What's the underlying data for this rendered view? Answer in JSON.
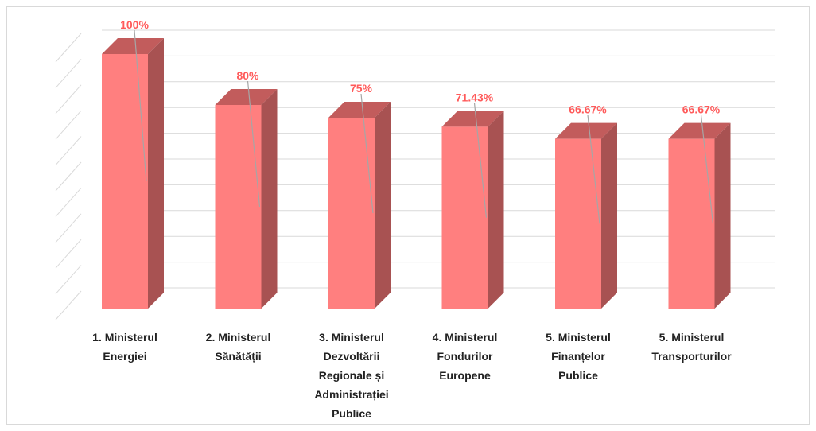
{
  "chart_data": {
    "type": "bar3d",
    "categories": [
      "1. Ministerul Energiei",
      "2. Ministerul Sănătății",
      "3. Ministerul Dezvoltării Regionale și Administrației Publice",
      "4. Ministerul Fondurilor Europene",
      "5. Ministerul Finanțelor Publice",
      "5. Ministerul Transporturilor"
    ],
    "values": [
      100,
      80,
      75,
      71.43,
      66.67,
      66.67
    ],
    "value_labels": [
      "100%",
      "80%",
      "75%",
      "71.43%",
      "66.67%",
      "66.67%"
    ],
    "color": "#ff7f7f",
    "side_color": "#a85252",
    "top_color": "#c25c5c",
    "label_color": "#ff5a5a",
    "ylim": [
      0,
      100
    ],
    "yticks": [
      0,
      10,
      20,
      30,
      40,
      50,
      60,
      70,
      80,
      90,
      100
    ],
    "grid": true
  }
}
